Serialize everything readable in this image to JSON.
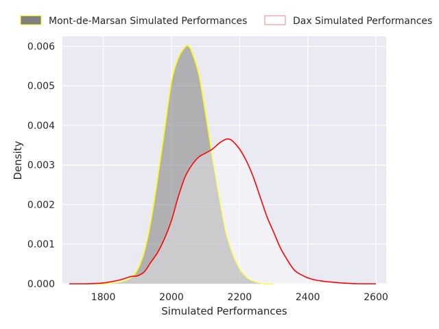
{
  "chart_data": {
    "type": "area",
    "title": "",
    "xlabel": "Simulated Performances",
    "ylabel": "Density",
    "xlim": [
      1680,
      2630
    ],
    "ylim": [
      0,
      0.00625
    ],
    "xticks": [
      1800,
      2000,
      2200,
      2400,
      2600
    ],
    "xtick_labels": [
      "1800",
      "2000",
      "2200",
      "2400",
      "2600"
    ],
    "yticks": [
      0,
      0.001,
      0.002,
      0.003,
      0.004,
      0.005,
      0.006
    ],
    "ytick_labels": [
      "0.000",
      "0.001",
      "0.002",
      "0.003",
      "0.004",
      "0.005",
      "0.006"
    ],
    "grid": true,
    "background": "#eaeaf2",
    "legend_position": "top",
    "series": [
      {
        "name": "Mont-de-Marsan Simulated Performances",
        "fill": "#808080",
        "fill_opacity": 0.55,
        "stroke": "#ffff00",
        "x": [
          1750,
          1800,
          1850,
          1880,
          1900,
          1920,
          1940,
          1960,
          1980,
          2000,
          2020,
          2040,
          2050,
          2060,
          2080,
          2100,
          2120,
          2140,
          2160,
          2180,
          2200,
          2220,
          2240,
          2260,
          2280,
          2300
        ],
        "y": [
          0.0,
          0.0,
          5e-05,
          0.00015,
          0.00035,
          0.0008,
          0.0016,
          0.0027,
          0.0039,
          0.0051,
          0.0057,
          0.00598,
          0.006,
          0.00585,
          0.0053,
          0.0043,
          0.0032,
          0.0022,
          0.0013,
          0.00075,
          0.00038,
          0.00017,
          7e-05,
          2e-05,
          0.0,
          0.0
        ]
      },
      {
        "name": "Dax Simulated Performances",
        "fill": "#ffffff",
        "fill_opacity": 0.35,
        "stroke": "#ff0000",
        "x": [
          1700,
          1750,
          1800,
          1850,
          1880,
          1900,
          1920,
          1940,
          1960,
          1980,
          2000,
          2020,
          2040,
          2060,
          2080,
          2100,
          2120,
          2140,
          2160,
          2170,
          2180,
          2200,
          2220,
          2240,
          2260,
          2280,
          2300,
          2320,
          2340,
          2360,
          2380,
          2400,
          2420,
          2440,
          2460,
          2500,
          2550,
          2600
        ],
        "y": [
          0.0,
          0.0,
          2e-05,
          0.0001,
          0.00018,
          0.0002,
          0.0003,
          0.00055,
          0.0008,
          0.00115,
          0.0016,
          0.0022,
          0.0027,
          0.003,
          0.0032,
          0.0033,
          0.0034,
          0.00355,
          0.00365,
          0.00365,
          0.0036,
          0.0034,
          0.0031,
          0.0027,
          0.0022,
          0.0017,
          0.0013,
          0.0009,
          0.0006,
          0.00035,
          0.00023,
          0.00015,
          0.0001,
          7e-05,
          5e-05,
          2e-05,
          0.0,
          0.0
        ]
      }
    ]
  }
}
